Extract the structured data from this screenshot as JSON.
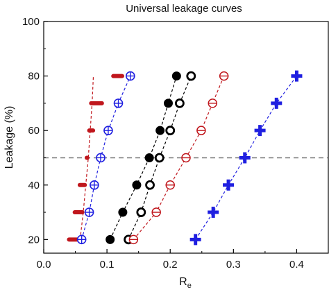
{
  "chart_data": {
    "type": "scatter",
    "title": "Universal leakage curves",
    "xlabel": "R",
    "xlabel_sub": "e",
    "ylabel": "Leakage (%)",
    "xlim": [
      0.0,
      0.45
    ],
    "ylim": [
      15,
      100
    ],
    "x_ticks": [
      0.0,
      0.1,
      0.2,
      0.3,
      0.4
    ],
    "x_tick_labels": [
      "0.0",
      "0.1",
      "0.2",
      "0.3",
      "0.4"
    ],
    "y_ticks": [
      20,
      40,
      60,
      80,
      100
    ],
    "y_tick_labels": [
      "20",
      "40",
      "60",
      "80",
      "100"
    ],
    "grid": false,
    "reference_line": {
      "y": 50,
      "style": "dashed",
      "color": "#7a7a7a"
    },
    "colors": {
      "red": "#c0161c",
      "blue": "#1f1fe0",
      "black": "#000000"
    },
    "series": [
      {
        "marker": "bar",
        "color": "#c0161c",
        "connect": true,
        "x": [
          0.0575,
          0.0625,
          0.0665,
          0.0705,
          0.0735,
          0.0765,
          0.0785
        ],
        "y": [
          20,
          30,
          40,
          50,
          60,
          70,
          80
        ],
        "bar_x0": [
          0.04,
          0.049,
          0.057,
          0.068,
          0.078,
          0.092,
          0.11
        ],
        "bar_x1": [
          0.056,
          0.061,
          0.065,
          0.069,
          0.072,
          0.075,
          0.124
        ]
      },
      {
        "marker": "circle-plus",
        "color": "#1f1fe0",
        "connect": true,
        "x": [
          0.06,
          0.072,
          0.08,
          0.09,
          0.102,
          0.118,
          0.137
        ],
        "y": [
          20,
          30,
          40,
          50,
          60,
          70,
          80
        ]
      },
      {
        "marker": "circle-filled",
        "color": "#000000",
        "connect": true,
        "x": [
          0.105,
          0.125,
          0.147,
          0.167,
          0.184,
          0.197,
          0.21
        ],
        "y": [
          20,
          30,
          40,
          50,
          60,
          70,
          80
        ]
      },
      {
        "marker": "circle-open",
        "color": "#000000",
        "connect": true,
        "x": [
          0.134,
          0.154,
          0.168,
          0.183,
          0.2,
          0.215,
          0.233
        ],
        "y": [
          20,
          30,
          40,
          50,
          60,
          70,
          80
        ]
      },
      {
        "marker": "circle-minus",
        "color": "#c0161c",
        "connect": true,
        "x": [
          0.142,
          0.178,
          0.2,
          0.225,
          0.249,
          0.267,
          0.285
        ],
        "y": [
          20,
          30,
          40,
          50,
          60,
          70,
          80
        ]
      },
      {
        "marker": "plus",
        "color": "#1f1fe0",
        "connect": true,
        "x": [
          0.24,
          0.268,
          0.292,
          0.318,
          0.342,
          0.368,
          0.4
        ],
        "y": [
          20,
          30,
          40,
          50,
          60,
          70,
          80
        ]
      }
    ]
  }
}
